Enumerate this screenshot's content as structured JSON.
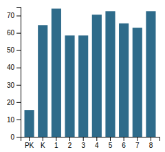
{
  "chart_data": {
    "type": "bar",
    "categories": [
      "PK",
      "K",
      "1",
      "2",
      "3",
      "4",
      "5",
      "6",
      "7",
      "8"
    ],
    "values": [
      15.5,
      64.5,
      74,
      58.5,
      58.5,
      70.5,
      72.5,
      65.5,
      63,
      72.5
    ],
    "color": "#2e6b8a",
    "ylim": [
      0,
      75
    ],
    "yticks": [
      0,
      10,
      20,
      30,
      40,
      50,
      60,
      70
    ],
    "grid": false
  }
}
